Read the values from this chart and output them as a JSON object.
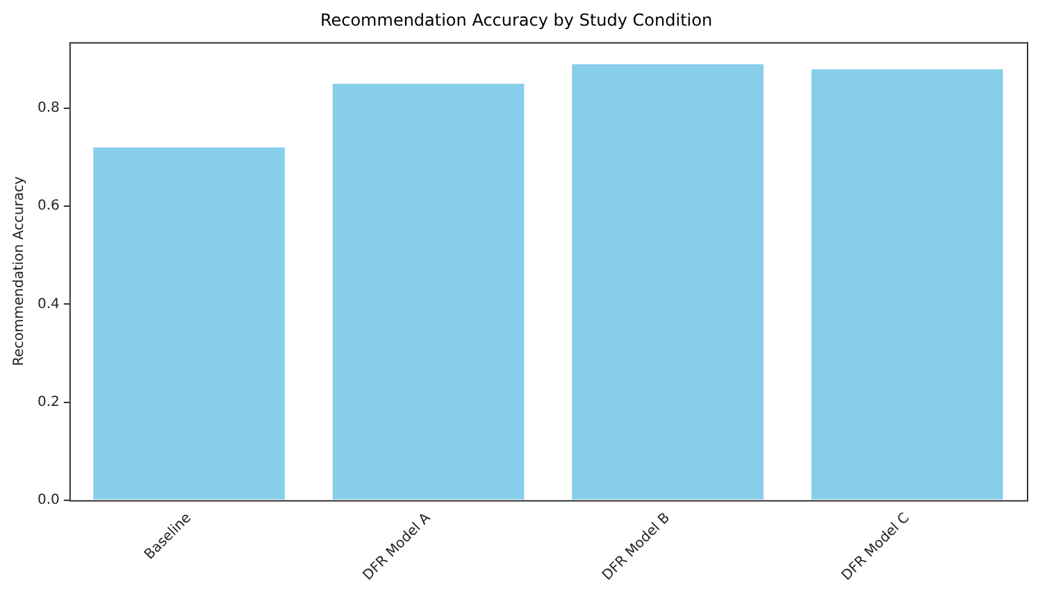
{
  "chart_data": {
    "type": "bar",
    "title": "Recommendation Accuracy by Study Condition",
    "ylabel": "Recommendation Accuracy",
    "categories": [
      "Baseline",
      "DFR Model A",
      "DFR Model B",
      "DFR Model C"
    ],
    "values": [
      0.72,
      0.85,
      0.89,
      0.88
    ],
    "color": "#87ceeb",
    "ylim": [
      0,
      0.935
    ],
    "yticks": [
      {
        "value": 0,
        "label": "0.0"
      },
      {
        "value": 0.2,
        "label": "0.2"
      },
      {
        "value": 0.4,
        "label": "0.4"
      },
      {
        "value": 0.6,
        "label": "0.6"
      },
      {
        "value": 0.8,
        "label": "0.8"
      }
    ],
    "grid": false,
    "legend": false
  }
}
